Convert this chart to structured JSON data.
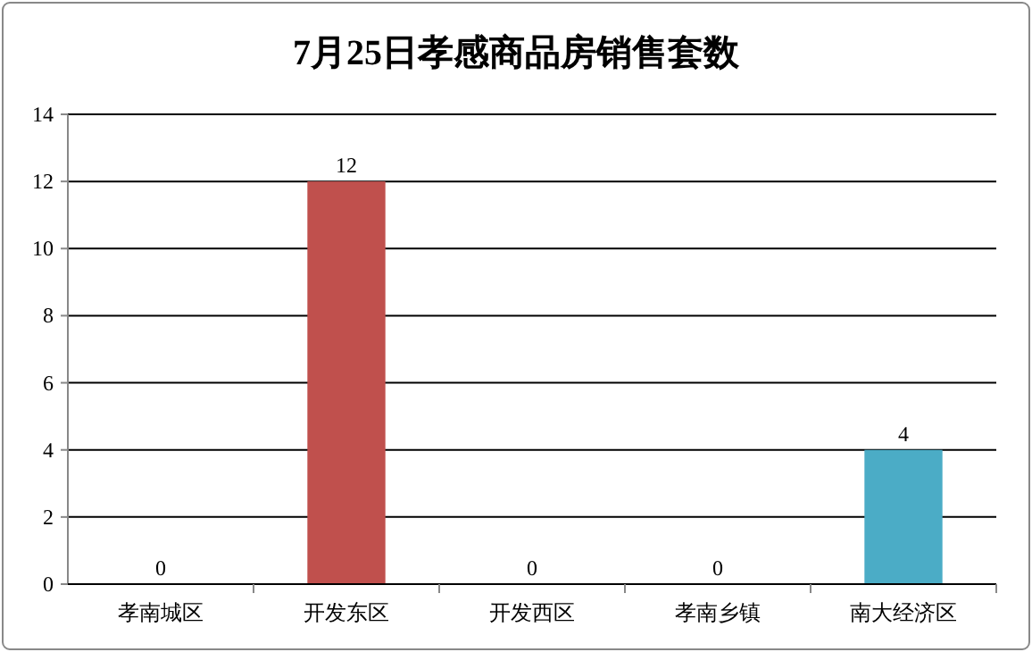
{
  "chart_data": {
    "type": "bar",
    "title": "7月25日孝感商品房销售套数",
    "categories": [
      "孝南城区",
      "开发东区",
      "开发西区",
      "孝南乡镇",
      "南大经济区"
    ],
    "values": [
      0,
      12,
      0,
      0,
      4
    ],
    "colors": [
      "#4f81bd",
      "#c0504d",
      "#9bbb59",
      "#8064a2",
      "#4bacc6"
    ],
    "ylim": [
      0,
      14
    ],
    "yticks": [
      0,
      2,
      4,
      6,
      8,
      10,
      12,
      14
    ],
    "grid": "y",
    "data_labels": true
  }
}
